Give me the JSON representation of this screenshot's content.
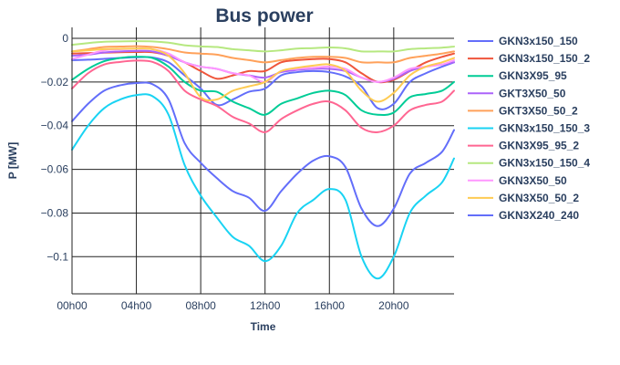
{
  "chart_data": {
    "type": "line",
    "title": "Bus power",
    "xlabel": "Time",
    "ylabel": "P [MW]",
    "x_hours": [
      0,
      1,
      2,
      3,
      4,
      5,
      6,
      7,
      8,
      9,
      10,
      11,
      12,
      13,
      14,
      15,
      16,
      17,
      18,
      19,
      20,
      21,
      22,
      23,
      23.75
    ],
    "xlim_hours": [
      0,
      23.75
    ],
    "ylim": [
      -0.117,
      0.005
    ],
    "x_ticks": [
      {
        "hour": 0,
        "label": "00h00"
      },
      {
        "hour": 4,
        "label": "04h00"
      },
      {
        "hour": 8,
        "label": "08h00"
      },
      {
        "hour": 12,
        "label": "12h00"
      },
      {
        "hour": 16,
        "label": "16h00"
      },
      {
        "hour": 20,
        "label": "20h00"
      }
    ],
    "y_ticks": [
      {
        "value": 0,
        "label": "0"
      },
      {
        "value": -0.02,
        "label": "−0.02"
      },
      {
        "value": -0.04,
        "label": "−0.04"
      },
      {
        "value": -0.06,
        "label": "−0.06"
      },
      {
        "value": -0.08,
        "label": "−0.08"
      },
      {
        "value": -0.1,
        "label": "−0.1"
      }
    ],
    "grid": true,
    "legend_position": "right",
    "series": [
      {
        "name": "GKN3x150_150",
        "color": "#636efa",
        "values": [
          -0.01,
          -0.0098,
          -0.0094,
          -0.009,
          -0.0087,
          -0.0088,
          -0.011,
          -0.017,
          -0.023,
          -0.0305,
          -0.028,
          -0.0245,
          -0.023,
          -0.017,
          -0.0155,
          -0.015,
          -0.0155,
          -0.0175,
          -0.022,
          -0.032,
          -0.03,
          -0.02,
          -0.016,
          -0.013,
          -0.011
        ]
      },
      {
        "name": "GKN3x150_150_2",
        "color": "#ef553b",
        "values": [
          -0.007,
          -0.0068,
          -0.0066,
          -0.0064,
          -0.0063,
          -0.0064,
          -0.008,
          -0.011,
          -0.015,
          -0.0185,
          -0.017,
          -0.015,
          -0.015,
          -0.011,
          -0.01,
          -0.0095,
          -0.0095,
          -0.011,
          -0.016,
          -0.02,
          -0.019,
          -0.015,
          -0.011,
          -0.0085,
          -0.007
        ]
      },
      {
        "name": "GKN3X95_95",
        "color": "#00cc96",
        "values": [
          -0.019,
          -0.014,
          -0.0105,
          -0.009,
          -0.0085,
          -0.009,
          -0.013,
          -0.02,
          -0.024,
          -0.0245,
          -0.029,
          -0.032,
          -0.035,
          -0.03,
          -0.0275,
          -0.025,
          -0.024,
          -0.026,
          -0.033,
          -0.035,
          -0.034,
          -0.027,
          -0.0255,
          -0.024,
          -0.02
        ]
      },
      {
        "name": "GKT3X50_50",
        "color": "#ab63fa",
        "values": [
          -0.008,
          -0.0075,
          -0.0065,
          -0.006,
          -0.0058,
          -0.006,
          -0.008,
          -0.011,
          -0.013,
          -0.014,
          -0.016,
          -0.017,
          -0.018,
          -0.0155,
          -0.0145,
          -0.014,
          -0.014,
          -0.015,
          -0.018,
          -0.02,
          -0.0185,
          -0.015,
          -0.013,
          -0.012,
          -0.011
        ]
      },
      {
        "name": "GKT3X50_50_2",
        "color": "#ffa15a",
        "values": [
          -0.006,
          -0.005,
          -0.004,
          -0.0038,
          -0.0036,
          -0.004,
          -0.005,
          -0.0065,
          -0.007,
          -0.0075,
          -0.009,
          -0.01,
          -0.011,
          -0.01,
          -0.009,
          -0.0085,
          -0.0085,
          -0.009,
          -0.011,
          -0.011,
          -0.011,
          -0.009,
          -0.008,
          -0.007,
          -0.006
        ]
      },
      {
        "name": "GKN3x150_150_3",
        "color": "#19d3f3",
        "values": [
          -0.051,
          -0.04,
          -0.032,
          -0.028,
          -0.026,
          -0.0265,
          -0.035,
          -0.058,
          -0.072,
          -0.082,
          -0.091,
          -0.095,
          -0.102,
          -0.095,
          -0.08,
          -0.074,
          -0.069,
          -0.074,
          -0.1,
          -0.11,
          -0.1,
          -0.08,
          -0.072,
          -0.066,
          -0.055
        ]
      },
      {
        "name": "GKN3X95_95_2",
        "color": "#ff6692",
        "values": [
          -0.023,
          -0.016,
          -0.012,
          -0.0108,
          -0.0102,
          -0.0108,
          -0.015,
          -0.024,
          -0.028,
          -0.031,
          -0.036,
          -0.039,
          -0.043,
          -0.037,
          -0.033,
          -0.03,
          -0.029,
          -0.033,
          -0.041,
          -0.043,
          -0.04,
          -0.033,
          -0.0305,
          -0.029,
          -0.024
        ]
      },
      {
        "name": "GKN3x150_150_4",
        "color": "#b6e880",
        "values": [
          -0.003,
          -0.0022,
          -0.0016,
          -0.0014,
          -0.0013,
          -0.0014,
          -0.002,
          -0.0032,
          -0.0037,
          -0.004,
          -0.005,
          -0.0055,
          -0.006,
          -0.0055,
          -0.0047,
          -0.0045,
          -0.0042,
          -0.0046,
          -0.006,
          -0.006,
          -0.006,
          -0.005,
          -0.0046,
          -0.0043,
          -0.0038
        ]
      },
      {
        "name": "GKN3X50_50",
        "color": "#ff97ff",
        "values": [
          -0.0095,
          -0.0075,
          -0.0055,
          -0.005,
          -0.0048,
          -0.005,
          -0.007,
          -0.011,
          -0.013,
          -0.014,
          -0.016,
          -0.017,
          -0.02,
          -0.015,
          -0.014,
          -0.0135,
          -0.013,
          -0.014,
          -0.018,
          -0.02,
          -0.018,
          -0.014,
          -0.013,
          -0.012,
          -0.01
        ]
      },
      {
        "name": "GKN3X50_50_2",
        "color": "#fecb52",
        "values": [
          -0.006,
          -0.0055,
          -0.005,
          -0.0048,
          -0.0047,
          -0.005,
          -0.008,
          -0.016,
          -0.027,
          -0.028,
          -0.024,
          -0.022,
          -0.02,
          -0.015,
          -0.0135,
          -0.0125,
          -0.012,
          -0.015,
          -0.024,
          -0.029,
          -0.025,
          -0.017,
          -0.013,
          -0.011,
          -0.009
        ]
      },
      {
        "name": "GKN3X240_240",
        "color": "#636efa",
        "values": [
          -0.038,
          -0.03,
          -0.024,
          -0.0215,
          -0.0205,
          -0.021,
          -0.028,
          -0.048,
          -0.057,
          -0.064,
          -0.07,
          -0.073,
          -0.079,
          -0.07,
          -0.062,
          -0.056,
          -0.054,
          -0.059,
          -0.078,
          -0.086,
          -0.078,
          -0.062,
          -0.057,
          -0.052,
          -0.042
        ]
      }
    ]
  }
}
